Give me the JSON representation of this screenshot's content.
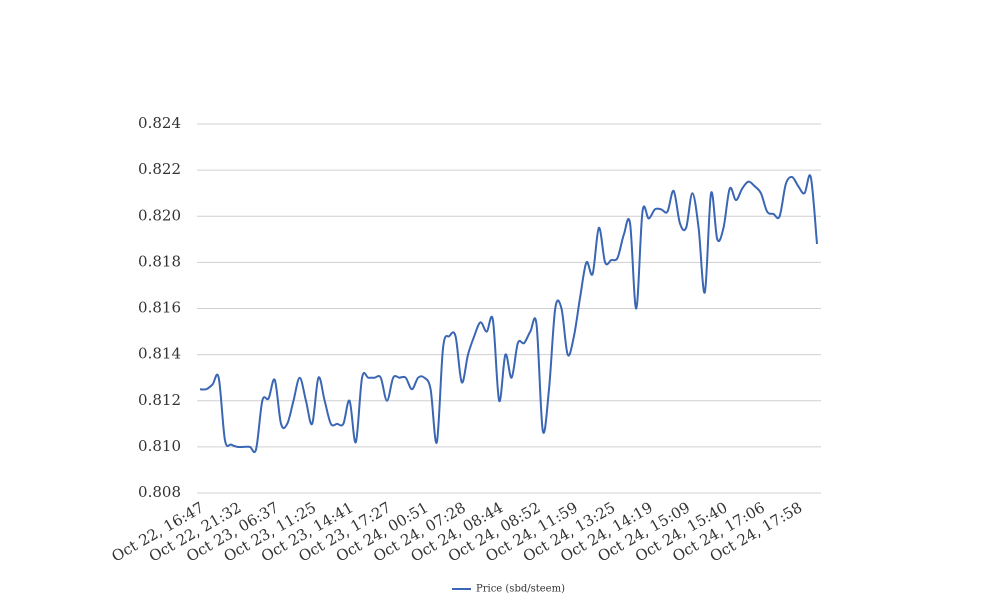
{
  "chart_data": {
    "type": "line",
    "categories": [
      "Oct 22, 16:47",
      null,
      null,
      null,
      null,
      null,
      "Oct 22, 21:32",
      null,
      null,
      null,
      null,
      null,
      "Oct 23, 06:37",
      null,
      null,
      null,
      null,
      null,
      "Oct 23, 11:25",
      null,
      null,
      null,
      null,
      null,
      "Oct 23, 14:41",
      null,
      null,
      null,
      null,
      null,
      "Oct 23, 17:27",
      null,
      null,
      null,
      null,
      null,
      "Oct 24, 00:51",
      null,
      null,
      null,
      null,
      null,
      "Oct 24, 07:28",
      null,
      null,
      null,
      null,
      null,
      "Oct 24, 08:44",
      null,
      null,
      null,
      null,
      null,
      "Oct 24, 08:52",
      null,
      null,
      null,
      null,
      null,
      "Oct 24, 11:59",
      null,
      null,
      null,
      null,
      null,
      "Oct 24, 13:25",
      null,
      null,
      null,
      null,
      null,
      "Oct 24, 14:19",
      null,
      null,
      null,
      null,
      null,
      "Oct 24, 15:09",
      null,
      null,
      null,
      null,
      null,
      "Oct 24, 15:40",
      null,
      null,
      null,
      null,
      null,
      "Oct 24, 17:06",
      null,
      null,
      null,
      null,
      null,
      "Oct 24, 17:58",
      null,
      null,
      null
    ],
    "series": [
      {
        "name": "Price (sbd/steem)",
        "color": "#3a66b4",
        "values": [
          0.8125,
          0.8125,
          0.8127,
          0.813,
          0.8103,
          0.8101,
          0.81,
          0.81,
          0.81,
          0.8099,
          0.812,
          0.8121,
          0.8129,
          0.811,
          0.811,
          0.812,
          0.813,
          0.812,
          0.811,
          0.813,
          0.812,
          0.811,
          0.811,
          0.811,
          0.812,
          0.8102,
          0.813,
          0.813,
          0.813,
          0.813,
          0.812,
          0.813,
          0.813,
          0.813,
          0.8125,
          0.813,
          0.813,
          0.8125,
          0.8102,
          0.8143,
          0.8148,
          0.8148,
          0.8128,
          0.814,
          0.8148,
          0.8154,
          0.815,
          0.8155,
          0.812,
          0.814,
          0.813,
          0.8145,
          0.8145,
          0.815,
          0.8153,
          0.8107,
          0.8125,
          0.816,
          0.816,
          0.814,
          0.8148,
          0.8165,
          0.818,
          0.8175,
          0.8195,
          0.818,
          0.8181,
          0.8182,
          0.8192,
          0.8197,
          0.816,
          0.8202,
          0.8199,
          0.8203,
          0.8203,
          0.8202,
          0.8211,
          0.8197,
          0.8195,
          0.821,
          0.8195,
          0.8167,
          0.821,
          0.819,
          0.8195,
          0.8212,
          0.8207,
          0.8212,
          0.8215,
          0.8213,
          0.821,
          0.8202,
          0.8201,
          0.82,
          0.8214,
          0.8217,
          0.8213,
          0.821,
          0.8217,
          0.8188
        ]
      }
    ],
    "ylim": [
      0.808,
      0.824
    ],
    "yticks": [
      0.808,
      {
        "value": 0.81,
        "label": "0.810"
      },
      0.812,
      0.814,
      0.816,
      0.818,
      {
        "value": 0.82,
        "label": "0.820"
      },
      0.822,
      0.824
    ],
    "grid": true,
    "legend": "bottom"
  }
}
